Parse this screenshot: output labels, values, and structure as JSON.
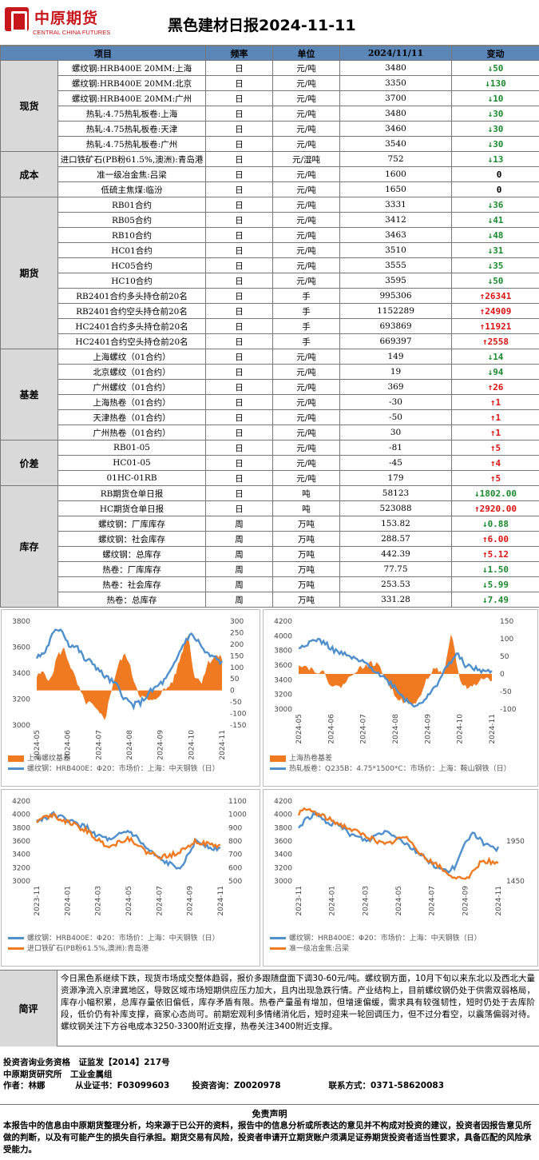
{
  "header": {
    "logo_cn": "中原期货",
    "logo_en": "CENTRAL CHINA FUTURES",
    "title": "黑色建材日报2024-11-11"
  },
  "table": {
    "columns": [
      "项目",
      "频率",
      "单位",
      "2024/11/11",
      "变动"
    ],
    "groups": [
      {
        "name": "现货",
        "rows": [
          {
            "item": "螺纹钢:HRB400E 20MM:上海",
            "freq": "日",
            "unit": "元/吨",
            "value": "3480",
            "dir": "down",
            "change": "50"
          },
          {
            "item": "螺纹钢:HRB400E 20MM:北京",
            "freq": "日",
            "unit": "元/吨",
            "value": "3350",
            "dir": "down",
            "change": "130"
          },
          {
            "item": "螺纹钢:HRB400E 20MM:广州",
            "freq": "日",
            "unit": "元/吨",
            "value": "3700",
            "dir": "down",
            "change": "10"
          },
          {
            "item": "热轧:4.75热轧板卷:上海",
            "freq": "日",
            "unit": "元/吨",
            "value": "3480",
            "dir": "down",
            "change": "30"
          },
          {
            "item": "热轧:4.75热轧板卷:天津",
            "freq": "日",
            "unit": "元/吨",
            "value": "3460",
            "dir": "down",
            "change": "30"
          },
          {
            "item": "热轧:4.75热轧板卷:广州",
            "freq": "日",
            "unit": "元/吨",
            "value": "3540",
            "dir": "down",
            "change": "30"
          }
        ]
      },
      {
        "name": "成本",
        "rows": [
          {
            "item": "进口铁矿石(PB粉61.5%,澳洲):青岛港",
            "freq": "日",
            "unit": "元/湿吨",
            "value": "752",
            "dir": "down",
            "change": "13"
          },
          {
            "item": "准一级冶金焦:吕梁",
            "freq": "日",
            "unit": "元/吨",
            "value": "1600",
            "dir": "none",
            "change": "0"
          },
          {
            "item": "低硫主焦煤:临汾",
            "freq": "日",
            "unit": "元/吨",
            "value": "1650",
            "dir": "none",
            "change": "0"
          }
        ]
      },
      {
        "name": "期货",
        "rows": [
          {
            "item": "RB01合约",
            "freq": "日",
            "unit": "元/吨",
            "value": "3331",
            "dir": "down",
            "change": "36"
          },
          {
            "item": "RB05合约",
            "freq": "日",
            "unit": "元/吨",
            "value": "3412",
            "dir": "down",
            "change": "41"
          },
          {
            "item": "RB10合约",
            "freq": "日",
            "unit": "元/吨",
            "value": "3463",
            "dir": "down",
            "change": "48"
          },
          {
            "item": "HC01合约",
            "freq": "日",
            "unit": "元/吨",
            "value": "3510",
            "dir": "down",
            "change": "31"
          },
          {
            "item": "HC05合约",
            "freq": "日",
            "unit": "元/吨",
            "value": "3555",
            "dir": "down",
            "change": "35"
          },
          {
            "item": "HC10合约",
            "freq": "日",
            "unit": "元/吨",
            "value": "3595",
            "dir": "down",
            "change": "50"
          },
          {
            "item": "RB2401合约多头持仓前20名",
            "freq": "日",
            "unit": "手",
            "value": "995306",
            "dir": "up",
            "change": "26341"
          },
          {
            "item": "RB2401合约空头持仓前20名",
            "freq": "日",
            "unit": "手",
            "value": "1152289",
            "dir": "up",
            "change": "24909"
          },
          {
            "item": "HC2401合约多头持仓前20名",
            "freq": "日",
            "unit": "手",
            "value": "693869",
            "dir": "up",
            "change": "11921"
          },
          {
            "item": "HC2401合约空头持仓前20名",
            "freq": "日",
            "unit": "手",
            "value": "669397",
            "dir": "up",
            "change": "2558"
          }
        ]
      },
      {
        "name": "基差",
        "rows": [
          {
            "item": "上海螺纹（01合约）",
            "freq": "日",
            "unit": "元/吨",
            "value": "149",
            "dir": "down",
            "change": "14"
          },
          {
            "item": "北京螺纹（01合约）",
            "freq": "日",
            "unit": "元/吨",
            "value": "19",
            "dir": "down",
            "change": "94"
          },
          {
            "item": "广州螺纹（01合约）",
            "freq": "日",
            "unit": "元/吨",
            "value": "369",
            "dir": "up",
            "change": "26"
          },
          {
            "item": "上海热卷（01合约）",
            "freq": "日",
            "unit": "元/吨",
            "value": "-30",
            "dir": "up",
            "change": "1"
          },
          {
            "item": "天津热卷（01合约）",
            "freq": "日",
            "unit": "元/吨",
            "value": "-50",
            "dir": "up",
            "change": "1"
          },
          {
            "item": "广州热卷（01合约）",
            "freq": "日",
            "unit": "元/吨",
            "value": "30",
            "dir": "up",
            "change": "1"
          }
        ]
      },
      {
        "name": "价差",
        "rows": [
          {
            "item": "RB01-05",
            "freq": "日",
            "unit": "元/吨",
            "value": "-81",
            "dir": "up",
            "change": "5"
          },
          {
            "item": "HC01-05",
            "freq": "日",
            "unit": "元/吨",
            "value": "-45",
            "dir": "up",
            "change": "4"
          },
          {
            "item": "01HC-01RB",
            "freq": "日",
            "unit": "元/吨",
            "value": "179",
            "dir": "up",
            "change": "5"
          }
        ]
      },
      {
        "name": "库存",
        "rows": [
          {
            "item": "RB期货仓单日报",
            "freq": "日",
            "unit": "吨",
            "value": "58123",
            "dir": "down",
            "change": "1802.00"
          },
          {
            "item": "HC期货仓单日报",
            "freq": "日",
            "unit": "吨",
            "value": "523088",
            "dir": "up",
            "change": "2920.00"
          },
          {
            "item": "螺纹钢：厂库库存",
            "freq": "周",
            "unit": "万吨",
            "value": "153.82",
            "dir": "down",
            "change": "0.88"
          },
          {
            "item": "螺纹钢：社会库存",
            "freq": "周",
            "unit": "万吨",
            "value": "288.57",
            "dir": "up",
            "change": "6.00"
          },
          {
            "item": "螺纹钢：总库存",
            "freq": "周",
            "unit": "万吨",
            "value": "442.39",
            "dir": "up",
            "change": "5.12"
          },
          {
            "item": "热卷：厂库库存",
            "freq": "周",
            "unit": "万吨",
            "value": "77.75",
            "dir": "down",
            "change": "1.50"
          },
          {
            "item": "热卷：社会库存",
            "freq": "周",
            "unit": "万吨",
            "value": "253.53",
            "dir": "down",
            "change": "5.99"
          },
          {
            "item": "热卷：总库存",
            "freq": "周",
            "unit": "万吨",
            "value": "331.28",
            "dir": "down",
            "change": "7.49"
          }
        ]
      }
    ]
  },
  "colors": {
    "up": "#dd1111",
    "down": "#1b8a2e",
    "header_bg": "#5b86b8",
    "category_bg": "#d9d9d9",
    "line_blue": "#4f8fcc",
    "area_orange": "#f07a22"
  },
  "chart_data": [
    {
      "type": "line",
      "left_yticks": [
        "3800",
        "3600",
        "3400",
        "3200",
        "3000"
      ],
      "right_yticks": [
        "300",
        "250",
        "200",
        "150",
        "100",
        "50",
        "0",
        "-50",
        "-100",
        "-150"
      ],
      "left_ylim": [
        3000,
        3800
      ],
      "right_ylim": [
        -150,
        300
      ],
      "xticks": [
        "2024-05",
        "2024-06",
        "2024-07",
        "2024-08",
        "2024-09",
        "2024-10",
        "2024-11"
      ],
      "series": [
        {
          "name": "上海螺纹基差",
          "kind": "area",
          "color": "#f07a22"
        },
        {
          "name": "螺纹钢：HRB400E：Φ20：市场价：上海：中天钢铁（日）",
          "kind": "line",
          "color": "#4f8fcc"
        }
      ]
    },
    {
      "type": "line",
      "left_yticks": [
        "4200",
        "4000",
        "3800",
        "3600",
        "3400",
        "3200",
        "3000"
      ],
      "right_yticks": [
        "150",
        "100",
        "50",
        "0",
        "-50",
        "-100"
      ],
      "left_ylim": [
        3000,
        4200
      ],
      "right_ylim": [
        -100,
        150
      ],
      "xticks": [
        "2024-05",
        "2024-06",
        "2024-07",
        "2024-08",
        "2024-09",
        "2024-10",
        "2024-11"
      ],
      "series": [
        {
          "name": "上海热卷基差",
          "kind": "area",
          "color": "#f07a22"
        },
        {
          "name": "热轧板卷：Q235B：4.75*1500*C：市场价：上海：鞍山钢铁（日）",
          "kind": "line",
          "color": "#4f8fcc"
        }
      ]
    },
    {
      "type": "line",
      "left_yticks": [
        "4200",
        "4000",
        "3800",
        "3600",
        "3400",
        "3200",
        "3000"
      ],
      "right_yticks": [
        "1100",
        "1000",
        "900",
        "800",
        "700",
        "600",
        "500"
      ],
      "left_ylim": [
        3000,
        4200
      ],
      "right_ylim": [
        500,
        1100
      ],
      "xticks": [
        "2023-11",
        "2024-01",
        "2024-03",
        "2024-05",
        "2024-07",
        "2024-09",
        "2024-11"
      ],
      "series": [
        {
          "name": "螺纹钢：HRB400E：Φ20：市场价：上海：中天钢铁（日）",
          "kind": "line",
          "color": "#4f8fcc"
        },
        {
          "name": "进口铁矿石(PB粉61.5%,澳洲):青岛港",
          "kind": "line",
          "color": "#f07a22"
        }
      ]
    },
    {
      "type": "line",
      "left_yticks": [
        "4200",
        "4000",
        "3800",
        "3600",
        "3400",
        "3200",
        "3000"
      ],
      "right_yticks": [
        "1950",
        "1450"
      ],
      "left_ylim": [
        3000,
        4200
      ],
      "right_ylim": [
        1450,
        2450
      ],
      "xticks": [
        "2023-11",
        "2024-01",
        "2024-03",
        "2024-05",
        "2024-07",
        "2024-09",
        "2024-11"
      ],
      "series": [
        {
          "name": "螺纹钢：HRB400E：Φ20：市场价：上海：中天钢铁（日）",
          "kind": "line",
          "color": "#4f8fcc"
        },
        {
          "name": "准一级冶金焦:吕梁",
          "kind": "line",
          "color": "#f07a22"
        }
      ]
    }
  ],
  "comment": {
    "label": "简评",
    "text": "今日黑色系继续下跌，现货市场成交整体趋弱，报价多跟随盘面下调30-60元/吨。螺纹钢方面，10月下旬以来东北以及西北大量资源净流入京津冀地区，导致区域市场短期供应压力加大，且内出现急跌行情。产业结构上，目前螺纹钢仍处于供需双弱格局，库存小幅积累，总库存量依旧偏低，库存矛盾有限。热卷产量虽有增加，但增速偏缓，需求具有较强韧性，短时仍处于去库阶段，低价仍有补库支撑，商家心态尚可。前期宏观利多情绪消化后，短时迎来一轮回调压力，但不过分看空，以震荡偏弱对待。螺纹钢关注下方谷电成本3250-3300附近支撑，热卷关注3400附近支撑。"
  },
  "footer": {
    "line1": "投资咨询业务资格　证监发【2014】217号",
    "line2": "中原期货研究所　工业金属组",
    "author_label": "作者：",
    "author": "林娜",
    "cert_label": "从业证书：",
    "cert": "F03099603",
    "advisor_label": "投资咨询：",
    "advisor": "Z0020978",
    "contact_label": "联系方式：",
    "contact": "0371-58620083"
  },
  "disclaimer": {
    "title": "免责声明",
    "text": "本报告中的信息由中原期货整理分析，均来源于已公开的资料，报告中的信息分析或所表达的意见并不构成对投资的建议，投资者因报告意见所做的判断，以及有可能产生的损失自行承担。期货交易有风险，投资者申请开立期货账户须满足证券期货投资者适当性要求，具备匹配的风险承受能力。"
  }
}
